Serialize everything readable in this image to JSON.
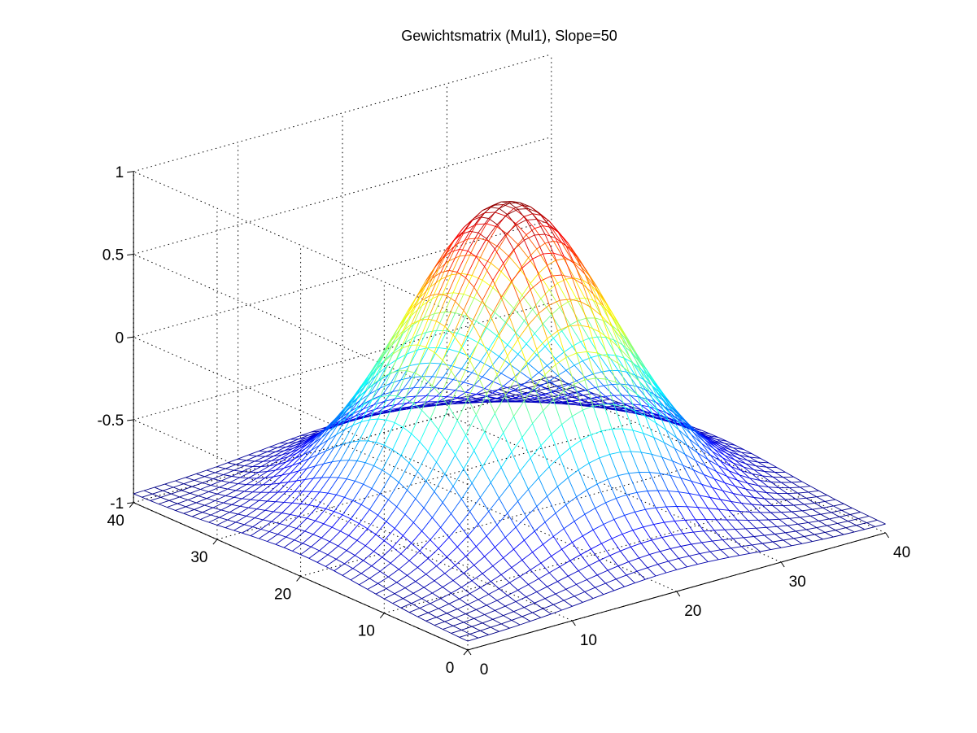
{
  "chart_data": {
    "type": "surface",
    "title": "Gewichtsmatrix (Mul1), Slope=50",
    "xlabel": "",
    "ylabel": "",
    "zlabel": "",
    "x": {
      "min": 0,
      "max": 40,
      "ticks": [
        0,
        10,
        20,
        30,
        40
      ],
      "tick_labels": [
        "0",
        "10",
        "20",
        "30",
        "40"
      ]
    },
    "y": {
      "min": 0,
      "max": 40,
      "ticks": [
        0,
        10,
        20,
        30,
        40
      ],
      "tick_labels": [
        "0",
        "10",
        "20",
        "30",
        "40"
      ]
    },
    "z": {
      "min": -1,
      "max": 1,
      "ticks": [
        -1,
        -0.5,
        0,
        0.5,
        1
      ],
      "tick_labels": [
        "-1",
        "-0.5",
        "0",
        "0.5",
        "1"
      ]
    },
    "grid": true,
    "colormap": "jet",
    "mesh": {
      "n": 41,
      "function": "z = -0.95 + 1.85 * exp(-((x-20)^2 + (y-20)^2) / (2 * 8^2))",
      "center": [
        20,
        20
      ],
      "sigma": 8,
      "base": -0.95,
      "peak": 0.9
    },
    "colors": {
      "background": "#ffffff",
      "axis": "#000000"
    }
  }
}
